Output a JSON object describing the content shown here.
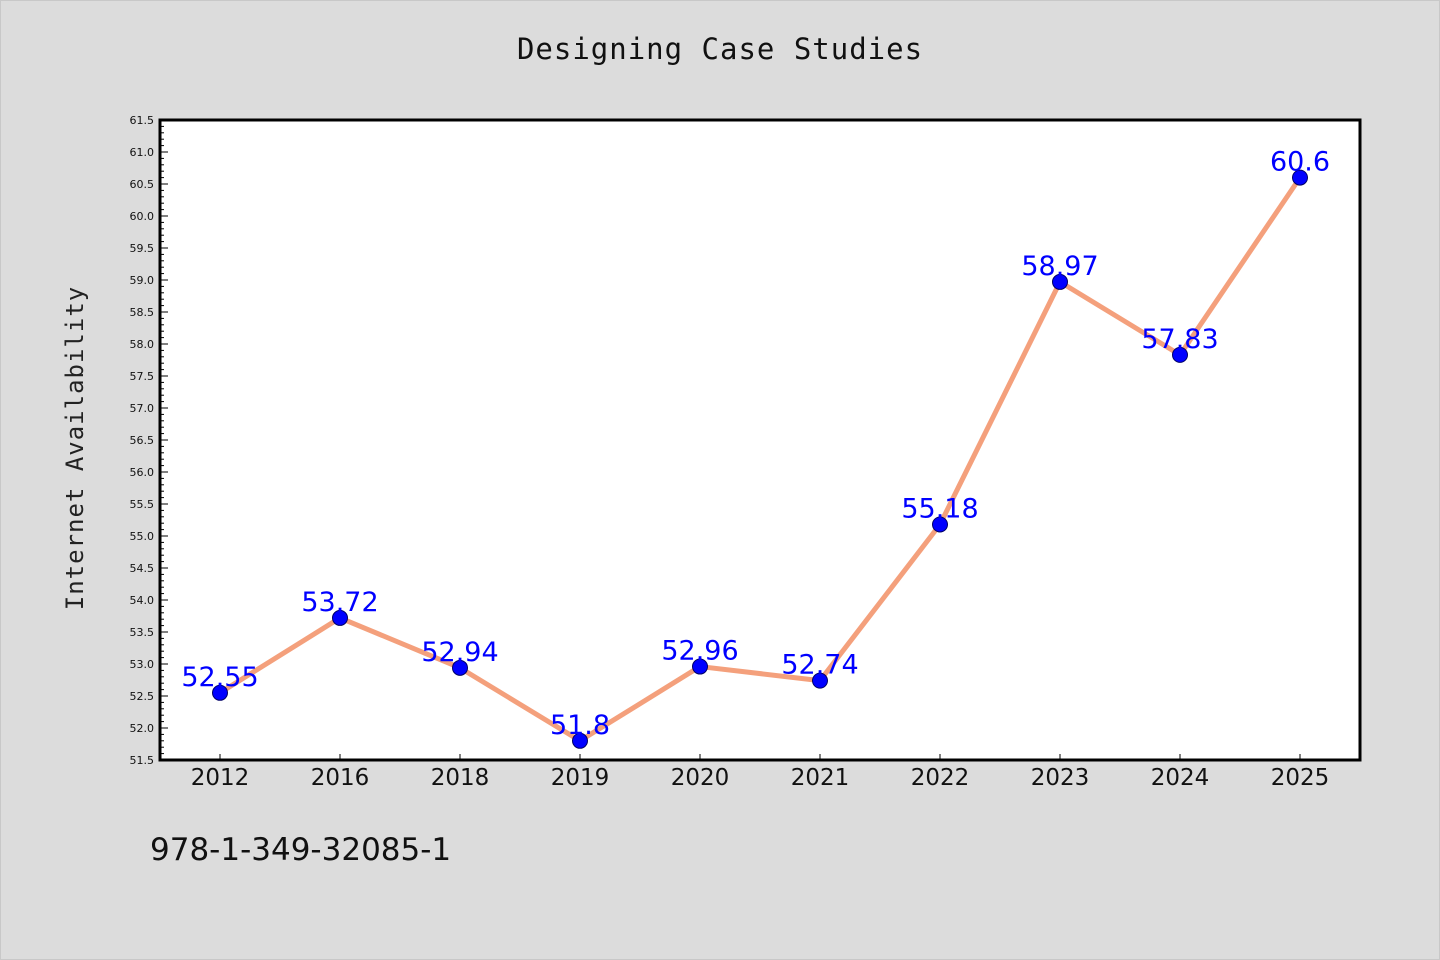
{
  "page": {
    "footer_text": "978-1-349-32085-1"
  },
  "chart_data": {
    "type": "line",
    "title": "Designing Case Studies",
    "xlabel": "",
    "ylabel": "Internet Availability",
    "categories": [
      "2012",
      "2016",
      "2018",
      "2019",
      "2020",
      "2021",
      "2022",
      "2023",
      "2024",
      "2025"
    ],
    "series": [
      {
        "values": [
          52.55,
          53.72,
          52.94,
          51.8,
          52.96,
          52.74,
          55.18,
          58.97,
          57.83,
          60.6
        ],
        "data_labels": [
          "52.55",
          "53.72",
          "52.94",
          "51.8",
          "52.96",
          "52.74",
          "55.18",
          "58.97",
          "57.83",
          "60.6"
        ],
        "line_color": "#f4a07c",
        "marker_color": "#0000ff"
      }
    ],
    "ylim": [
      51.5,
      61.5
    ],
    "y_ticks": [
      "51.5",
      "52.0",
      "52.5",
      "53.0",
      "53.5",
      "54.0",
      "54.5",
      "55.0",
      "55.5",
      "56.0",
      "56.5",
      "57.0",
      "57.5",
      "58.0",
      "58.5",
      "59.0",
      "59.5",
      "60.0",
      "60.5",
      "61.0",
      "61.5"
    ],
    "grid": false,
    "legend": "none",
    "colors": {
      "background": "#dcdcdc",
      "plot_background": "#ffffff",
      "axis": "#000000",
      "data_label": "#0000ff"
    }
  }
}
